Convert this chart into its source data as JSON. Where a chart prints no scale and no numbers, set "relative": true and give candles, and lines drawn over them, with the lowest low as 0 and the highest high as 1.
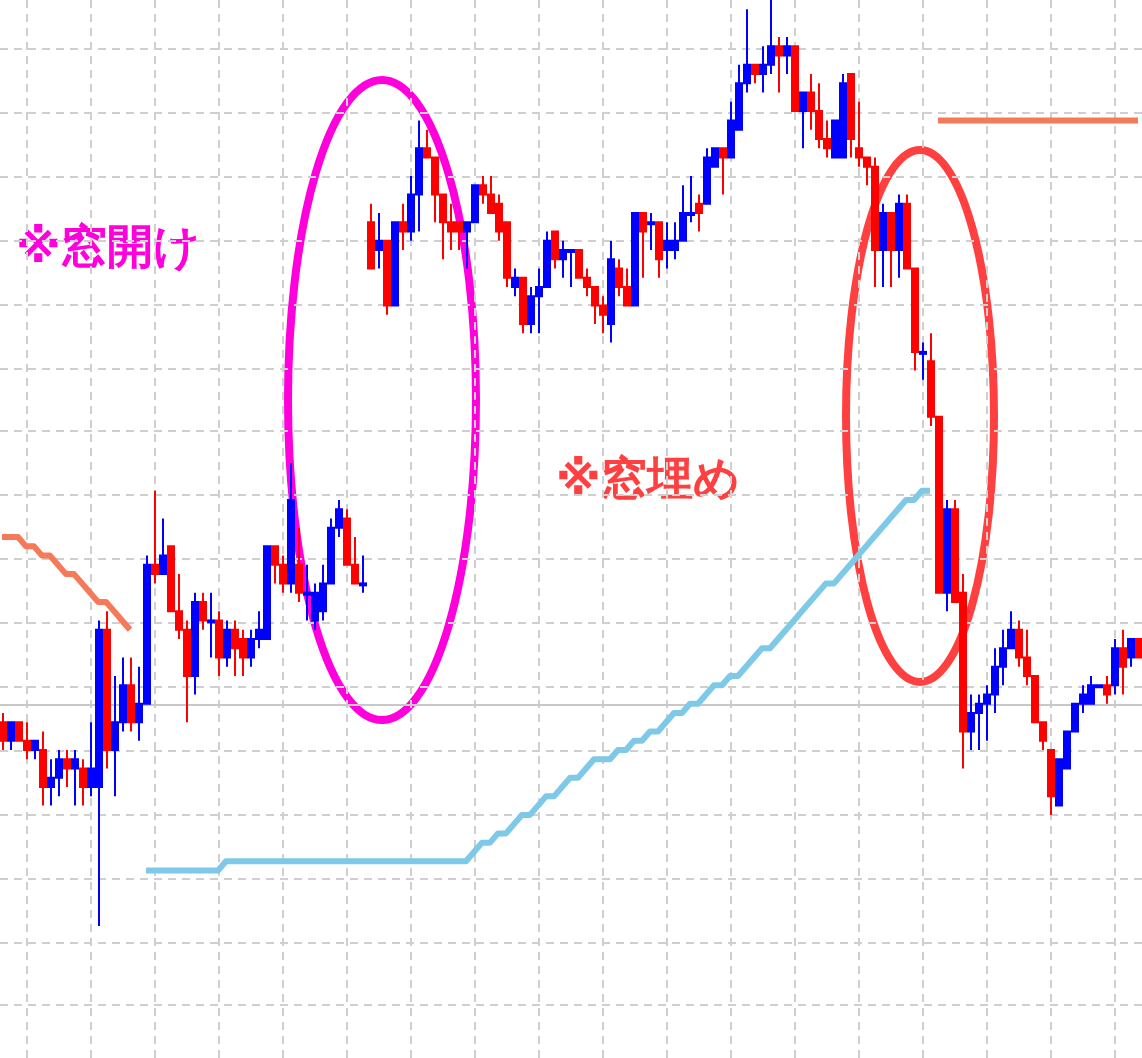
{
  "chart_data": {
    "type": "candlestick",
    "relative": true,
    "grid": true,
    "categories": [
      null,
      null,
      null,
      null,
      null,
      null,
      null,
      null,
      null,
      null,
      null,
      null,
      null,
      null,
      null,
      null,
      null,
      null,
      null,
      null,
      null,
      null,
      null,
      null,
      null,
      null,
      null,
      null,
      null,
      null,
      null,
      null,
      null,
      null,
      null,
      null,
      null,
      null,
      null,
      null,
      null,
      null,
      null,
      null,
      null,
      null,
      null,
      null,
      null,
      null,
      null,
      null,
      null,
      null,
      null,
      null,
      null,
      null,
      null,
      null,
      null,
      null,
      null,
      null,
      null,
      null,
      null,
      null,
      null,
      null,
      null,
      null,
      null,
      null,
      null,
      null,
      null,
      null,
      null,
      null,
      null,
      null,
      null,
      null,
      null,
      null,
      null,
      null,
      null,
      null,
      null,
      null,
      null,
      null,
      null,
      null,
      null,
      null,
      null,
      null,
      null,
      null,
      null,
      null,
      null,
      null,
      null,
      null,
      null,
      null,
      null,
      null,
      null,
      null,
      null,
      null,
      null,
      null,
      null,
      null,
      null,
      null,
      null,
      null,
      null,
      null,
      null,
      null,
      null,
      null,
      null,
      null,
      null,
      null,
      null,
      null,
      null,
      null,
      null,
      null,
      null,
      null,
      null
    ],
    "ohlc": [
      [
        0.22,
        0.23,
        0.19,
        0.2
      ],
      [
        0.2,
        0.22,
        0.19,
        0.22
      ],
      [
        0.22,
        0.22,
        0.2,
        0.2
      ],
      [
        0.2,
        0.22,
        0.18,
        0.19
      ],
      [
        0.19,
        0.2,
        0.18,
        0.2
      ],
      [
        0.19,
        0.21,
        0.13,
        0.15
      ],
      [
        0.15,
        0.18,
        0.13,
        0.16
      ],
      [
        0.16,
        0.19,
        0.14,
        0.18
      ],
      [
        0.18,
        0.19,
        0.15,
        0.17
      ],
      [
        0.17,
        0.19,
        0.13,
        0.18
      ],
      [
        0.17,
        0.18,
        0.13,
        0.15
      ],
      [
        0.15,
        0.22,
        0.14,
        0.17
      ],
      [
        0.15,
        0.33,
        0,
        0.32
      ],
      [
        0.32,
        0.34,
        0.17,
        0.19
      ],
      [
        0.19,
        0.27,
        0.14,
        0.22
      ],
      [
        0.22,
        0.29,
        0.21,
        0.26
      ],
      [
        0.26,
        0.29,
        0.21,
        0.22
      ],
      [
        0.22,
        0.28,
        0.2,
        0.24
      ],
      [
        0.24,
        0.4,
        0.24,
        0.39
      ],
      [
        0.39,
        0.47,
        0.37,
        0.38
      ],
      [
        0.38,
        0.44,
        0.38,
        0.4
      ],
      [
        0.41,
        0.41,
        0.34,
        0.34
      ],
      [
        0.34,
        0.38,
        0.31,
        0.32
      ],
      [
        0.32,
        0.33,
        0.22,
        0.27
      ],
      [
        0.27,
        0.36,
        0.25,
        0.35
      ],
      [
        0.35,
        0.36,
        0.32,
        0.33
      ],
      [
        0.33,
        0.36,
        0.29,
        0.33
      ],
      [
        0.33,
        0.34,
        0.27,
        0.29
      ],
      [
        0.29,
        0.33,
        0.28,
        0.32
      ],
      [
        0.32,
        0.33,
        0.27,
        0.3
      ],
      [
        0.31,
        0.32,
        0.27,
        0.29
      ],
      [
        0.29,
        0.32,
        0.28,
        0.31
      ],
      [
        0.31,
        0.34,
        0.3,
        0.32
      ],
      [
        0.31,
        0.41,
        0.31,
        0.41
      ],
      [
        0.41,
        0.41,
        0.37,
        0.39
      ],
      [
        0.39,
        0.4,
        0.36,
        0.37
      ],
      [
        0.37,
        0.5,
        0.36,
        0.46
      ],
      [
        0.39,
        0.43,
        0.35,
        0.36
      ],
      [
        0.36,
        0.39,
        0.33,
        0.36
      ],
      [
        0.33,
        0.37,
        0.32,
        0.36
      ],
      [
        0.34,
        0.39,
        0.33,
        0.37
      ],
      [
        0.37,
        0.44,
        0.37,
        0.43
      ],
      [
        0.43,
        0.46,
        0.42,
        0.45
      ],
      [
        0.44,
        0.45,
        0.39,
        0.39
      ],
      [
        0.39,
        0.42,
        0.37,
        0.37
      ],
      [
        0.37,
        0.4,
        0.36,
        0.37
      ],
      [
        0.76,
        0.78,
        0.71,
        0.71
      ],
      [
        0.73,
        0.77,
        0.71,
        0.74
      ],
      [
        0.74,
        0.74,
        0.66,
        0.67
      ],
      [
        0.67,
        0.76,
        0.67,
        0.76
      ],
      [
        0.76,
        0.78,
        0.73,
        0.75
      ],
      [
        0.75,
        0.81,
        0.74,
        0.79
      ],
      [
        0.79,
        0.87,
        0.75,
        0.84
      ],
      [
        0.84,
        0.86,
        0.83,
        0.83
      ],
      [
        0.83,
        0.83,
        0.76,
        0.79
      ],
      [
        0.79,
        0.79,
        0.72,
        0.76
      ],
      [
        0.76,
        0.78,
        0.73,
        0.75
      ],
      [
        0.76,
        0.76,
        0.73,
        0.75
      ],
      [
        0.75,
        0.76,
        0.71,
        0.76
      ],
      [
        0.76,
        0.8,
        0.76,
        0.8
      ],
      [
        0.8,
        0.81,
        0.78,
        0.79
      ],
      [
        0.79,
        0.81,
        0.77,
        0.77
      ],
      [
        0.78,
        0.79,
        0.74,
        0.75
      ],
      [
        0.76,
        0.76,
        0.69,
        0.7
      ],
      [
        0.69,
        0.71,
        0.68,
        0.7
      ],
      [
        0.7,
        0.7,
        0.64,
        0.65
      ],
      [
        0.65,
        0.69,
        0.64,
        0.68
      ],
      [
        0.68,
        0.71,
        0.64,
        0.69
      ],
      [
        0.69,
        0.75,
        0.69,
        0.74
      ],
      [
        0.75,
        0.75,
        0.71,
        0.72
      ],
      [
        0.72,
        0.74,
        0.7,
        0.73
      ],
      [
        0.73,
        0.73,
        0.69,
        0.73
      ],
      [
        0.73,
        0.73,
        0.7,
        0.7
      ],
      [
        0.7,
        0.71,
        0.68,
        0.69
      ],
      [
        0.69,
        0.69,
        0.65,
        0.67
      ],
      [
        0.67,
        0.68,
        0.64,
        0.66
      ],
      [
        0.65,
        0.74,
        0.63,
        0.72
      ],
      [
        0.71,
        0.72,
        0.68,
        0.69
      ],
      [
        0.69,
        0.71,
        0.67,
        0.67
      ],
      [
        0.67,
        0.77,
        0.67,
        0.77
      ],
      [
        0.77,
        0.77,
        0.7,
        0.75
      ],
      [
        0.76,
        0.77,
        0.73,
        0.76
      ],
      [
        0.76,
        0.76,
        0.7,
        0.72
      ],
      [
        0.73,
        0.76,
        0.71,
        0.74
      ],
      [
        0.73,
        0.76,
        0.72,
        0.74
      ],
      [
        0.74,
        0.8,
        0.74,
        0.77
      ],
      [
        0.77,
        0.81,
        0.76,
        0.77
      ],
      [
        0.78,
        0.79,
        0.75,
        0.77
      ],
      [
        0.78,
        0.84,
        0.78,
        0.83
      ],
      [
        0.82,
        0.84,
        0.82,
        0.84
      ],
      [
        0.84,
        0.84,
        0.79,
        0.83
      ],
      [
        0.83,
        0.89,
        0.83,
        0.87
      ],
      [
        0.86,
        0.93,
        0.86,
        0.91
      ],
      [
        0.91,
        0.99,
        0.9,
        0.93
      ],
      [
        0.93,
        0.93,
        0.91,
        0.92
      ],
      [
        0.92,
        0.95,
        0.9,
        0.93
      ],
      [
        0.93,
        1,
        0.92,
        0.95
      ],
      [
        0.95,
        0.96,
        0.9,
        0.94
      ],
      [
        0.94,
        0.96,
        0.92,
        0.95
      ],
      [
        0.95,
        0.95,
        0.88,
        0.88
      ],
      [
        0.88,
        0.9,
        0.84,
        0.9
      ],
      [
        0.9,
        0.92,
        0.86,
        0.88
      ],
      [
        0.88,
        0.91,
        0.84,
        0.85
      ],
      [
        0.85,
        0.87,
        0.83,
        0.84
      ],
      [
        0.83,
        0.87,
        0.83,
        0.87
      ],
      [
        0.83,
        0.92,
        0.83,
        0.91
      ],
      [
        0.92,
        0.92,
        0.83,
        0.85
      ],
      [
        0.84,
        0.89,
        0.82,
        0.83
      ],
      [
        0.83,
        0.83,
        0.8,
        0.82
      ],
      [
        0.82,
        0.83,
        0.69,
        0.73
      ],
      [
        0.73,
        0.78,
        0.69,
        0.77
      ],
      [
        0.77,
        0.77,
        0.69,
        0.73
      ],
      [
        0.73,
        0.79,
        0.7,
        0.78
      ],
      [
        0.78,
        0.79,
        0.71,
        0.71
      ],
      [
        0.71,
        0.71,
        0.6,
        0.62
      ],
      [
        0.62,
        0.63,
        0.59,
        0.62
      ],
      [
        0.61,
        0.64,
        0.54,
        0.55
      ],
      [
        0.55,
        0.55,
        0.36,
        0.36
      ],
      [
        0.36,
        0.46,
        0.34,
        0.45
      ],
      [
        0.45,
        0.46,
        0.35,
        0.35
      ],
      [
        0.36,
        0.38,
        0.17,
        0.21
      ],
      [
        0.21,
        0.25,
        0.19,
        0.23
      ],
      [
        0.23,
        0.25,
        0.19,
        0.24
      ],
      [
        0.24,
        0.26,
        0.2,
        0.25
      ],
      [
        0.25,
        0.3,
        0.23,
        0.28
      ],
      [
        0.28,
        0.32,
        0.26,
        0.3
      ],
      [
        0.3,
        0.34,
        0.3,
        0.32
      ],
      [
        0.32,
        0.33,
        0.28,
        0.29
      ],
      [
        0.29,
        0.32,
        0.26,
        0.27
      ],
      [
        0.27,
        0.27,
        0.22,
        0.22
      ],
      [
        0.22,
        0.22,
        0.19,
        0.2
      ],
      [
        0.19,
        0.19,
        0.12,
        0.14
      ],
      [
        0.13,
        0.18,
        0.13,
        0.18
      ],
      [
        0.17,
        0.21,
        0.17,
        0.21
      ],
      [
        0.21,
        0.24,
        0.21,
        0.24
      ],
      [
        0.24,
        0.26,
        0.23,
        0.25
      ],
      [
        0.24,
        0.27,
        0.24,
        0.26
      ],
      [
        0.26,
        0.26,
        0.26,
        0.26
      ],
      [
        0.26,
        0.27,
        0.24,
        0.25
      ],
      [
        0.26,
        0.31,
        0.25,
        0.3
      ],
      [
        0.3,
        0.32,
        0.25,
        0.28
      ],
      [
        0.29,
        0.31,
        0.28,
        0.31
      ],
      [
        0.31,
        0.31,
        0.29,
        0.29
      ]
    ],
    "series": [
      {
        "type": "line",
        "color": "#f47a5a",
        "values": [
          0.42,
          0.42,
          0.42,
          0.41,
          0.41,
          0.4,
          0.4,
          0.39,
          0.38,
          0.38,
          0.37,
          0.36,
          0.35,
          0.35,
          0.34,
          0.33,
          0.32,
          null,
          null,
          null,
          null,
          null,
          null,
          null,
          null,
          null,
          null,
          null,
          null,
          null,
          null,
          null,
          null,
          null,
          null,
          null,
          null,
          null,
          null,
          null,
          null,
          null,
          null,
          null,
          null,
          null,
          null,
          null,
          null,
          null,
          null,
          null,
          null,
          null,
          null,
          null,
          null,
          null,
          null,
          null,
          null,
          null,
          null,
          null,
          null,
          null,
          null,
          null,
          null,
          null,
          null,
          null,
          null,
          null,
          null,
          null,
          null,
          null,
          null,
          null,
          null,
          null,
          null,
          null,
          null,
          null,
          null,
          null,
          null,
          null,
          null,
          null,
          null,
          null,
          null,
          null,
          null,
          null,
          null,
          null,
          null,
          null,
          null,
          null,
          null,
          null,
          null,
          null,
          null,
          null,
          null,
          null,
          null,
          null,
          null,
          null,
          null,
          null,
          null,
          null,
          null,
          null,
          null,
          null,
          null,
          null,
          null,
          null,
          null,
          null,
          null,
          null,
          null,
          null,
          null,
          null,
          null,
          null,
          null,
          null,
          null,
          null,
          null
        ]
      },
      {
        "type": "line",
        "color": "#f47a5a",
        "values": [
          null,
          null,
          null,
          null,
          null,
          null,
          null,
          null,
          null,
          null,
          null,
          null,
          null,
          null,
          null,
          null,
          null,
          null,
          null,
          null,
          null,
          null,
          null,
          null,
          null,
          null,
          null,
          null,
          null,
          null,
          null,
          null,
          null,
          null,
          null,
          null,
          null,
          null,
          null,
          null,
          null,
          null,
          null,
          null,
          null,
          null,
          null,
          null,
          null,
          null,
          null,
          null,
          null,
          null,
          null,
          null,
          null,
          null,
          null,
          null,
          null,
          null,
          null,
          null,
          null,
          null,
          null,
          null,
          null,
          null,
          null,
          null,
          null,
          null,
          null,
          null,
          null,
          null,
          null,
          null,
          null,
          null,
          null,
          null,
          null,
          null,
          null,
          null,
          null,
          null,
          null,
          null,
          null,
          null,
          null,
          null,
          null,
          null,
          null,
          null,
          null,
          null,
          null,
          null,
          null,
          null,
          null,
          null,
          null,
          null,
          null,
          null,
          null,
          null,
          null,
          null,
          null,
          0.87,
          0.87,
          0.87,
          0.87,
          0.87,
          0.87,
          0.87,
          0.87,
          0.87,
          0.87,
          0.87,
          0.87,
          0.87,
          0.87,
          0.87,
          0.87,
          0.87,
          0.87,
          0.87,
          0.87,
          0.87,
          0.87,
          0.87,
          0.87,
          0.87,
          0.87
        ]
      },
      {
        "type": "line",
        "color": "#7ec8e8",
        "values": [
          null,
          null,
          null,
          null,
          null,
          null,
          null,
          null,
          null,
          null,
          null,
          null,
          null,
          null,
          null,
          null,
          null,
          null,
          0.06,
          0.06,
          0.06,
          0.06,
          0.06,
          0.06,
          0.06,
          0.06,
          0.06,
          0.06,
          0.07,
          0.07,
          0.07,
          0.07,
          0.07,
          0.07,
          0.07,
          0.07,
          0.07,
          0.07,
          0.07,
          0.07,
          0.07,
          0.07,
          0.07,
          0.07,
          0.07,
          0.07,
          0.07,
          0.07,
          0.07,
          0.07,
          0.07,
          0.07,
          0.07,
          0.07,
          0.07,
          0.07,
          0.07,
          0.07,
          0.07,
          0.08,
          0.09,
          0.09,
          0.1,
          0.1,
          0.11,
          0.12,
          0.12,
          0.13,
          0.14,
          0.14,
          0.15,
          0.16,
          0.16,
          0.17,
          0.18,
          0.18,
          0.18,
          0.19,
          0.19,
          0.2,
          0.2,
          0.21,
          0.21,
          0.22,
          0.23,
          0.23,
          0.24,
          0.24,
          0.25,
          0.26,
          0.26,
          0.27,
          0.27,
          0.28,
          0.29,
          0.3,
          0.3,
          0.31,
          0.32,
          0.33,
          0.34,
          0.35,
          0.36,
          0.37,
          0.37,
          0.38,
          0.39,
          0.4,
          0.41,
          0.42,
          0.43,
          0.44,
          0.45,
          0.46,
          0.46,
          0.47,
          0.47,
          null,
          null,
          null,
          null,
          null,
          null,
          null,
          null,
          null,
          null,
          null,
          null,
          null,
          null,
          null,
          null,
          null,
          null,
          null,
          null,
          null,
          null,
          null,
          null,
          null,
          null
        ]
      }
    ],
    "ref_lines": [
      {
        "axis": "y",
        "value": 0.24,
        "color": "#c8c8c8"
      }
    ],
    "annotations": [
      "※窓開け",
      "※窓埋め"
    ]
  }
}
